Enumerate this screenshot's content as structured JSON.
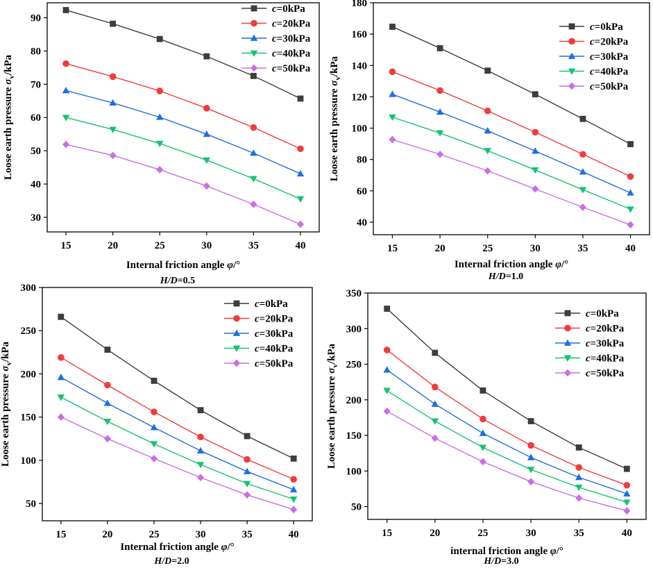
{
  "figure": {
    "colors": [
      "#3d3d3d",
      "#f03c3c",
      "#1f6fe0",
      "#14c36e",
      "#c86ee6"
    ],
    "markers": [
      "square",
      "circle",
      "triangle-up",
      "triangle-down",
      "diamond"
    ],
    "legend_prefix": "c",
    "legend_suffixes": [
      "=0kPa",
      "=20kPa",
      "=30kPa",
      "=40kPa",
      "=50kPa"
    ]
  },
  "chart_data": [
    {
      "type": "line",
      "caption_italic": "H/D",
      "caption_value": "=0.5",
      "xlabel_text": "Internal friction angle ",
      "xlabel_symbol": "φ",
      "xlabel_unit": "/°",
      "ylabel_text": "Loose earth pressure ",
      "ylabel_symbol": "σ",
      "ylabel_sub": "v",
      "ylabel_unit": "/kPa",
      "x": [
        15,
        20,
        25,
        30,
        35,
        40
      ],
      "xlim": [
        13,
        42
      ],
      "ylim": [
        25.6,
        94.5
      ],
      "yticks": [
        30,
        40,
        50,
        60,
        70,
        80,
        90
      ],
      "legend_position": "top-right",
      "series": [
        {
          "name": "c=0kPa",
          "values": [
            92.3,
            88.2,
            83.6,
            78.4,
            72.5,
            65.7
          ]
        },
        {
          "name": "c=20kPa",
          "values": [
            76.2,
            72.3,
            68.0,
            62.8,
            57.0,
            50.6
          ]
        },
        {
          "name": "c=30kPa",
          "values": [
            68.1,
            64.4,
            60.1,
            55.0,
            49.3,
            43.1
          ]
        },
        {
          "name": "c=40kPa",
          "values": [
            60.0,
            56.4,
            52.2,
            47.2,
            41.6,
            35.5
          ]
        },
        {
          "name": "c=50kPa",
          "values": [
            51.9,
            48.6,
            44.3,
            39.4,
            33.9,
            27.9
          ]
        }
      ]
    },
    {
      "type": "line",
      "caption_italic": "H/D",
      "caption_value": "=1.0",
      "xlabel_text": "Internal friction angle ",
      "xlabel_symbol": "φ",
      "xlabel_unit": "/°",
      "ylabel_text": "Loose earth pressure ",
      "ylabel_symbol": "σ",
      "ylabel_sub": "v",
      "ylabel_unit": "/kPa",
      "x": [
        15,
        20,
        25,
        30,
        35,
        40
      ],
      "xlim": [
        13,
        42
      ],
      "ylim": [
        32,
        180
      ],
      "yticks": [
        40,
        60,
        80,
        100,
        120,
        140,
        160,
        180
      ],
      "legend_position": "top-right",
      "series": [
        {
          "name": "c=0kPa",
          "values": [
            164.7,
            151.0,
            136.7,
            121.6,
            105.9,
            89.8
          ]
        },
        {
          "name": "c=20kPa",
          "values": [
            136.0,
            124.0,
            111.0,
            97.4,
            83.3,
            69.1
          ]
        },
        {
          "name": "c=30kPa",
          "values": [
            121.6,
            110.3,
            98.3,
            85.4,
            72.1,
            58.7
          ]
        },
        {
          "name": "c=40kPa",
          "values": [
            107.0,
            96.9,
            85.6,
            73.3,
            60.7,
            48.3
          ]
        },
        {
          "name": "c=50kPa",
          "values": [
            92.7,
            83.3,
            72.7,
            61.2,
            49.5,
            38.3
          ]
        }
      ]
    },
    {
      "type": "line",
      "caption_italic": "H/D",
      "caption_value": "=2.0",
      "xlabel_text": "Internal friction angle ",
      "xlabel_symbol": "φ",
      "xlabel_unit": "/°",
      "ylabel_text": "Loose earth pressure ",
      "ylabel_symbol": "σ",
      "ylabel_sub": "v",
      "ylabel_unit": "/kPa",
      "x": [
        15,
        20,
        25,
        30,
        35,
        40
      ],
      "xlim": [
        13,
        42
      ],
      "ylim": [
        30,
        300
      ],
      "yticks": [
        50,
        100,
        150,
        200,
        250,
        300
      ],
      "legend_position": "top-right",
      "series": [
        {
          "name": "c=0kPa",
          "values": [
            266,
            228,
            192,
            158,
            128,
            102
          ]
        },
        {
          "name": "c=20kPa",
          "values": [
            219,
            187,
            156,
            127,
            101,
            78
          ]
        },
        {
          "name": "c=30kPa",
          "values": [
            196,
            166,
            138,
            111,
            87,
            66
          ]
        },
        {
          "name": "c=40kPa",
          "values": [
            173,
            145,
            119,
            95,
            73,
            55
          ]
        },
        {
          "name": "c=50kPa",
          "values": [
            150,
            125,
            102,
            80,
            60,
            43
          ]
        }
      ]
    },
    {
      "type": "line",
      "caption_italic": "H/D",
      "caption_value": "=3.0",
      "xlabel_text": "internal friction angle ",
      "xlabel_symbol": "φ",
      "xlabel_unit": "/°",
      "ylabel_text": "Loose earth pressure ",
      "ylabel_symbol": "σ",
      "ylabel_sub": "v",
      "ylabel_unit": "/kPa",
      "x": [
        15,
        20,
        25,
        30,
        35,
        40
      ],
      "xlim": [
        13,
        42
      ],
      "ylim": [
        32,
        350
      ],
      "yticks": [
        50,
        100,
        150,
        200,
        250,
        300,
        350
      ],
      "legend_position": "top-right",
      "series": [
        {
          "name": "c=0kPa",
          "values": [
            328,
            266,
            213,
            170,
            133,
            103
          ]
        },
        {
          "name": "c=20kPa",
          "values": [
            270,
            218,
            173,
            136,
            105,
            80
          ]
        },
        {
          "name": "c=30kPa",
          "values": [
            242,
            194,
            153,
            119,
            91,
            68
          ]
        },
        {
          "name": "c=40kPa",
          "values": [
            213,
            170,
            133,
            102,
            77,
            56
          ]
        },
        {
          "name": "c=50kPa",
          "values": [
            184,
            146,
            113,
            85,
            62,
            44
          ]
        }
      ]
    }
  ]
}
